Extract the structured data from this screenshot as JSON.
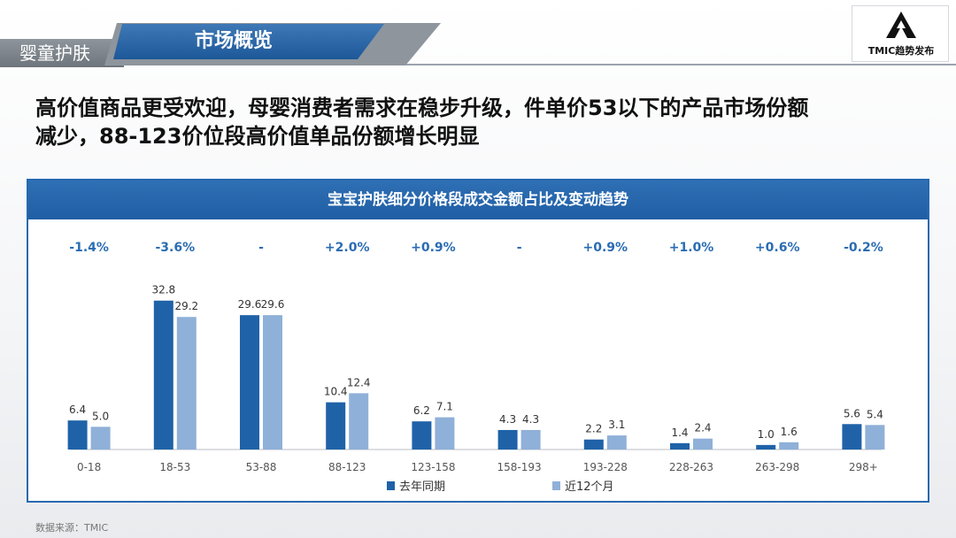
{
  "header": {
    "category": "婴童护肤",
    "section": "市场概览",
    "logo_text": "TMIC趋势发布"
  },
  "headline": {
    "line1": "高价值商品更受欢迎，母婴消费者需求在稳步升级，件单价53以下的产品市场份额",
    "line2": "减少，88-123价位段高价值单品份额增长明显"
  },
  "source": "数据来源：TMIC",
  "colors": {
    "series_last_year": "#1f62a8",
    "series_recent": "#8fb0d8",
    "change_text": "#2a6cb2",
    "axis": "#b8bec6"
  },
  "chart_data": {
    "type": "bar",
    "title": "宝宝护肤细分价格段成交金额占比及变动趋势",
    "categories": [
      "0-18",
      "18-53",
      "53-88",
      "88-123",
      "123-158",
      "158-193",
      "193-228",
      "228-263",
      "263-298",
      "298+"
    ],
    "series": [
      {
        "name": "去年同期",
        "values": [
          6.4,
          32.8,
          29.6,
          10.4,
          6.2,
          4.3,
          2.2,
          1.4,
          1.0,
          5.6
        ]
      },
      {
        "name": "近12个月",
        "values": [
          5.0,
          29.2,
          29.6,
          12.4,
          7.1,
          4.3,
          3.1,
          2.4,
          1.6,
          5.4
        ]
      }
    ],
    "value_labels": {
      "去年同期": [
        "6.4",
        "32.8",
        "29.6",
        "10.4",
        "6.2",
        "4.3",
        "2.2",
        "1.4",
        "1.0",
        "5.6"
      ],
      "近12个月": [
        "5.0",
        "29.2",
        "29.6",
        "12.4",
        "7.1",
        "4.3",
        "3.1",
        "2.4",
        "1.6",
        "5.4"
      ]
    },
    "changes": [
      "-1.4%",
      "-3.6%",
      "-",
      "+2.0%",
      "+0.9%",
      "-",
      "+0.9%",
      "+1.0%",
      "+0.6%",
      "-0.2%"
    ],
    "ylim": [
      0,
      35
    ],
    "legend_position": "bottom",
    "grid": false
  }
}
